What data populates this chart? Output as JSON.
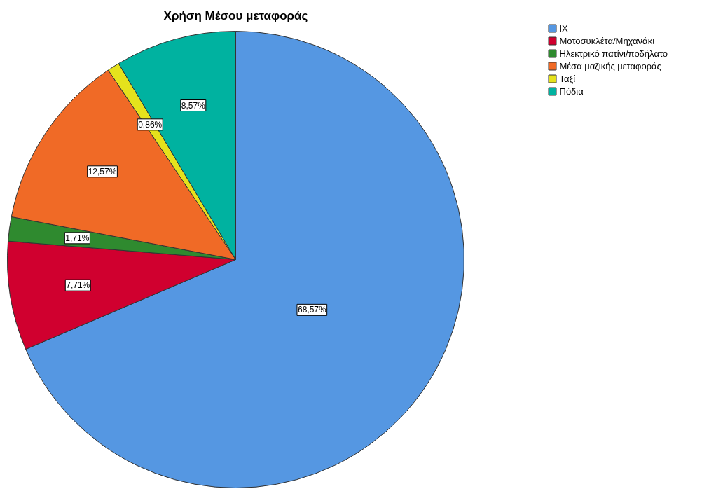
{
  "chart_data": {
    "type": "pie",
    "title": "Χρήση Μέσου μεταφοράς",
    "categories": [
      "ΙΧ",
      "Μοτοσυκλέτα/Μηχανάκι",
      "Ηλεκτρικό πατίνι/ποδήλατο",
      "Μέσα μαζικής μεταφοράς",
      "Ταξί",
      "Πόδια"
    ],
    "values": [
      68.57,
      7.71,
      1.71,
      12.57,
      0.86,
      8.57
    ],
    "colors": [
      "#5597e2",
      "#d0002f",
      "#2f8a2f",
      "#f06a26",
      "#e5e21c",
      "#00b2a0"
    ],
    "value_labels": [
      "68,57%",
      "7,71%",
      "1,71%",
      "12,57%",
      "0,86%",
      "8,57%"
    ],
    "legend": "top right"
  }
}
